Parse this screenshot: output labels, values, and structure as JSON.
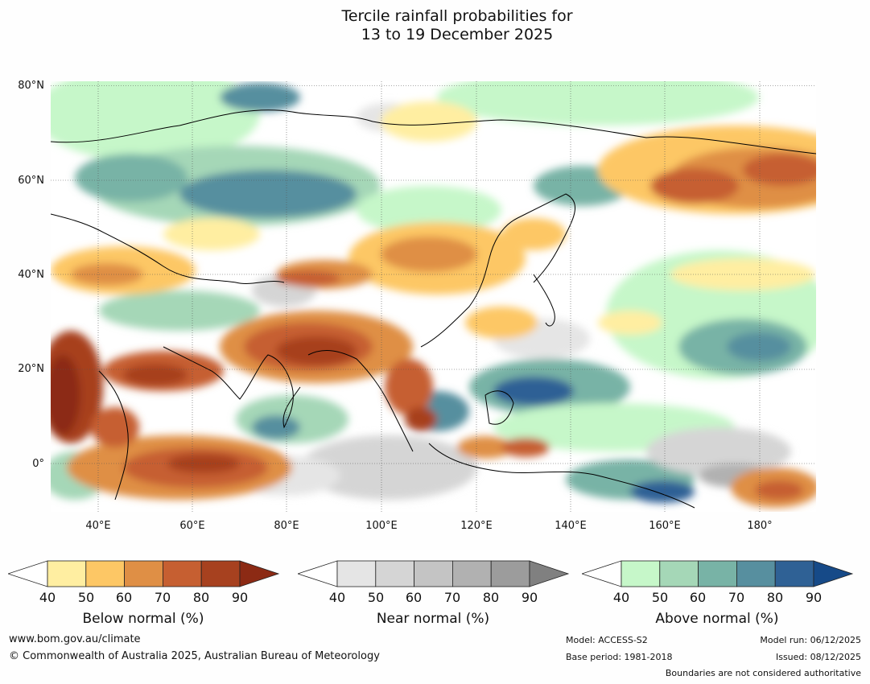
{
  "title": {
    "line1": "Tercile rainfall probabilities for",
    "line2": "13 to 19 December 2025"
  },
  "map": {
    "lat_labels": [
      "80°N",
      "60°N",
      "40°N",
      "20°N",
      "0°"
    ],
    "lon_labels": [
      "40°E",
      "60°E",
      "80°E",
      "100°E",
      "120°E",
      "140°E",
      "160°E",
      "180°"
    ],
    "region": "Asia and western Pacific",
    "lon_range_deg": [
      30,
      192
    ],
    "lat_range_deg": [
      -10,
      80
    ]
  },
  "colorbars": [
    {
      "name": "below-normal",
      "title": "Below normal (%)",
      "ticks": [
        "40",
        "50",
        "60",
        "70",
        "80",
        "90"
      ],
      "colors": [
        "#ffffff",
        "#ffeea1",
        "#fdc765",
        "#df8f45",
        "#c65f31",
        "#a7411f",
        "#8c2a14"
      ]
    },
    {
      "name": "near-normal",
      "title": "Near normal (%)",
      "ticks": [
        "40",
        "50",
        "60",
        "70",
        "80",
        "90"
      ],
      "colors": [
        "#ffffff",
        "#e5e5e5",
        "#d5d5d5",
        "#c4c4c4",
        "#b1b1b1",
        "#9c9c9c",
        "#808080"
      ]
    },
    {
      "name": "above-normal",
      "title": "Above normal (%)",
      "ticks": [
        "40",
        "50",
        "60",
        "70",
        "80",
        "90"
      ],
      "colors": [
        "#ffffff",
        "#c6f7c9",
        "#a5d7b7",
        "#78b3a6",
        "#578f9f",
        "#2f6195",
        "#164a88"
      ]
    }
  ],
  "footer": {
    "website": "www.bom.gov.au/climate",
    "copyright": "© Commonwealth of Australia 2025, Australian Bureau of Meteorology",
    "model": "Model: ACCESS-S2",
    "base_period": "Base period: 1981-2018",
    "model_run": "Model run: 06/12/2025",
    "issued": "Issued: 08/12/2025",
    "disclaimer": "Boundaries are not considered authoritative"
  }
}
